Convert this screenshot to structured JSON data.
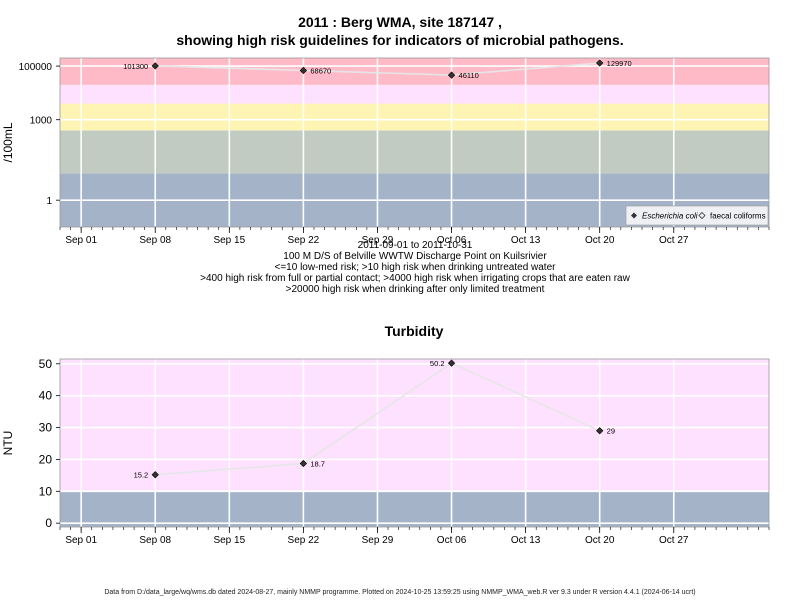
{
  "title_line1": "2011 : Berg WMA, site 187147 ,",
  "title_line2": "showing high risk guidelines for indicators of microbial pathogens.",
  "subtitle_lines": [
    "2011-09-01 to 2011-10-31",
    "100 M D/S of Belville WWTW Discharge Point on Kuilsrivier",
    "<=10 low-med risk; >10 high risk when drinking untreated water",
    ">400 high risk from full or partial contact; >4000 high risk when irrigating crops that are eaten raw",
    ">20000 high risk when drinking after only limited treatment"
  ],
  "footer": "Data from D:/data_large/wq/wms.db dated 2024-08-27, mainly NMMP programme. Plotted on 2024-10-25 13:59:25 using NMMP_WMA_web.R ver 9.3 under R version 4.4.1 (2024-06-14 ucrt)",
  "colors": {
    "low_risk": "#a4b3c8",
    "band_10_400": "#c2cbc2",
    "band_400_4000": "#fef4b4",
    "band_4000_20000": "#fde1fe",
    "high_risk": "#ffbac8",
    "point": "#000000",
    "line": "#e6e6e6"
  },
  "chart_data": [
    {
      "type": "line",
      "title": "",
      "ylabel": "/100mL",
      "yscale": "log",
      "ylim": [
        0.1,
        200000
      ],
      "y_ticks": [
        1,
        1000,
        100000
      ],
      "y_tick_labels": [
        "1",
        "1000",
        "100000"
      ],
      "x_ticks": [
        "2011-09-01",
        "2011-09-08",
        "2011-09-15",
        "2011-09-22",
        "2011-09-29",
        "2011-10-06",
        "2011-10-13",
        "2011-10-20",
        "2011-10-27"
      ],
      "x_tick_labels": [
        "Sep 01",
        "Sep 08",
        "Sep 15",
        "Sep 22",
        "Sep 29",
        "Oct 06",
        "Oct 13",
        "Oct 20",
        "Oct 27"
      ],
      "xlim": [
        "2011-08-30",
        "2011-11-05"
      ],
      "risk_bands": [
        {
          "from": 0.1,
          "to": 10,
          "color_key": "low_risk"
        },
        {
          "from": 10,
          "to": 400,
          "color_key": "band_10_400"
        },
        {
          "from": 400,
          "to": 4000,
          "color_key": "band_400_4000"
        },
        {
          "from": 4000,
          "to": 20000,
          "color_key": "band_4000_20000"
        },
        {
          "from": 20000,
          "to": 200000,
          "color_key": "high_risk"
        }
      ],
      "legend": {
        "position": "bottom-right",
        "entries": [
          "Escherichia coli",
          "faecal coliforms"
        ]
      },
      "series": [
        {
          "name": "Escherichia coli",
          "x": [
            "2011-09-08",
            "2011-09-22",
            "2011-10-06",
            "2011-10-20"
          ],
          "values": [
            101300,
            68670,
            46110,
            129970
          ],
          "labels": [
            "101300",
            "68670",
            "46110",
            "129970"
          ]
        }
      ]
    },
    {
      "type": "line",
      "title": "Turbidity",
      "ylabel": "NTU",
      "yscale": "linear",
      "ylim": [
        -1.2,
        51.5
      ],
      "y_ticks": [
        0,
        10,
        20,
        30,
        40,
        50
      ],
      "y_tick_labels": [
        "0",
        "10",
        "20",
        "30",
        "40",
        "50"
      ],
      "x_ticks": [
        "2011-09-01",
        "2011-09-08",
        "2011-09-15",
        "2011-09-22",
        "2011-09-29",
        "2011-10-06",
        "2011-10-13",
        "2011-10-20",
        "2011-10-27"
      ],
      "x_tick_labels": [
        "Sep 01",
        "Sep 08",
        "Sep 15",
        "Sep 22",
        "Sep 29",
        "Oct 06",
        "Oct 13",
        "Oct 20",
        "Oct 27"
      ],
      "xlim": [
        "2011-08-30",
        "2011-11-05"
      ],
      "risk_bands": [
        {
          "from": -1.2,
          "to": 10,
          "color_key": "low_risk"
        },
        {
          "from": 10,
          "to": 51.5,
          "color_key": "band_4000_20000"
        }
      ],
      "series": [
        {
          "name": "",
          "x": [
            "2011-09-08",
            "2011-09-22",
            "2011-10-06",
            "2011-10-20"
          ],
          "values": [
            15.2,
            18.7,
            50.2,
            29
          ],
          "labels": [
            "15.2",
            "18.7",
            "50.2",
            "29"
          ]
        }
      ]
    }
  ]
}
